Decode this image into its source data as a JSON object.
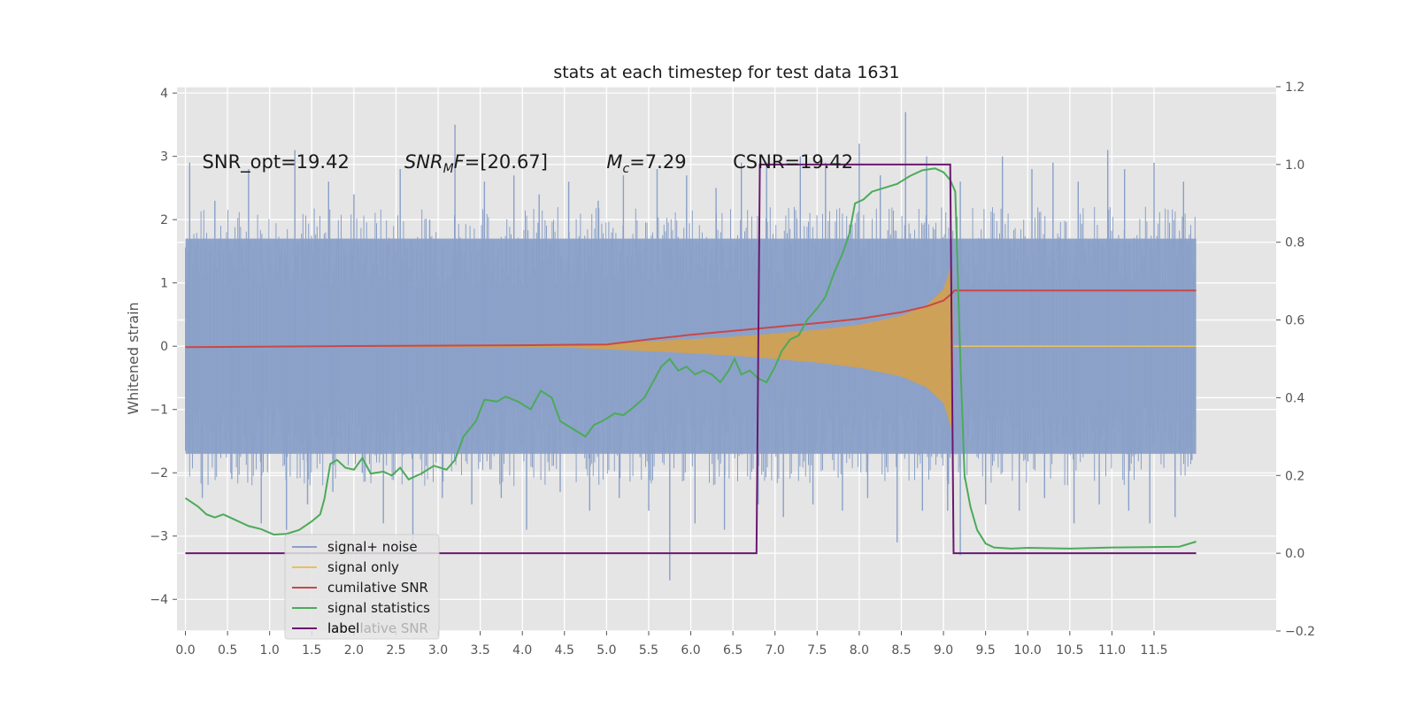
{
  "chart_data": {
    "type": "line",
    "title": "stats at each timestep for test data 1631",
    "ylabel": "Whitened strain",
    "xlabel": "",
    "xlim": [
      -0.1,
      12.95
    ],
    "ylim_left": [
      -4.5,
      4.1
    ],
    "ylim_right": [
      -0.2,
      1.2
    ],
    "grid": true,
    "legend_position": "lower-left",
    "x_ticks": [
      "0.0",
      "0.5",
      "1.0",
      "1.5",
      "2.0",
      "2.5",
      "3.0",
      "3.5",
      "4.0",
      "4.5",
      "5.0",
      "5.5",
      "6.0",
      "6.5",
      "7.0",
      "7.5",
      "8.0",
      "8.5",
      "9.0",
      "9.5",
      "10.0",
      "10.5",
      "11.0",
      "11.5"
    ],
    "y_left_ticks": [
      "4",
      "3",
      "2",
      "1",
      "0",
      "−1",
      "−2",
      "−3",
      "−4"
    ],
    "y_right_ticks": [
      "1.2",
      "1.0",
      "0.8",
      "0.6",
      "0.4",
      "0.2",
      "0.0",
      "−0.2"
    ],
    "annotations": [
      {
        "prefix": "SNR_opt=",
        "value": "19.42",
        "x": 0.2,
        "y": 2.9
      },
      {
        "math": "SNR",
        "sub": "M",
        "tail": "F=",
        "value": "[20.67]",
        "x": 2.6,
        "y": 2.9
      },
      {
        "math": "M",
        "sub": "c",
        "tail": "=",
        "value": "7.29",
        "x": 5.0,
        "y": 2.9
      },
      {
        "prefix": "CSNR=",
        "value": "19.42",
        "x": 6.5,
        "y": 2.9
      }
    ],
    "legend_ghost_text": "cumilative SNR",
    "series": [
      {
        "name": "signal+ noise",
        "color": "#8aa0c8",
        "axis": "left",
        "x_range": [
          0,
          12.0
        ],
        "envelope_upper": [
          [
            0,
            1.7
          ],
          [
            12.0,
            1.7
          ]
        ],
        "envelope_lower": [
          [
            0,
            -1.7
          ],
          [
            12.0,
            -1.7
          ]
        ],
        "outlier_points": [
          [
            0.05,
            2.9
          ],
          [
            0.35,
            2.3
          ],
          [
            0.75,
            2.8
          ],
          [
            1.3,
            3.1
          ],
          [
            1.7,
            2.6
          ],
          [
            2.0,
            2.4
          ],
          [
            2.55,
            2.8
          ],
          [
            2.9,
            2.0
          ],
          [
            3.2,
            3.5
          ],
          [
            3.55,
            2.6
          ],
          [
            3.9,
            2.7
          ],
          [
            4.2,
            2.4
          ],
          [
            4.55,
            2.6
          ],
          [
            4.9,
            2.3
          ],
          [
            5.2,
            2.7
          ],
          [
            5.6,
            2.8
          ],
          [
            5.95,
            2.7
          ],
          [
            6.3,
            2.5
          ],
          [
            6.6,
            2.9
          ],
          [
            6.9,
            2.9
          ],
          [
            7.3,
            3.0
          ],
          [
            7.6,
            2.9
          ],
          [
            8.0,
            3.2
          ],
          [
            8.25,
            2.7
          ],
          [
            8.55,
            3.7
          ],
          [
            8.8,
            3.0
          ],
          [
            9.2,
            2.6
          ],
          [
            9.7,
            3.0
          ],
          [
            10.05,
            2.8
          ],
          [
            10.3,
            2.9
          ],
          [
            10.6,
            2.6
          ],
          [
            10.95,
            3.1
          ],
          [
            11.15,
            2.8
          ],
          [
            11.5,
            2.9
          ],
          [
            11.85,
            2.6
          ],
          [
            0.2,
            -2.4
          ],
          [
            0.55,
            -2.1
          ],
          [
            0.9,
            -2.8
          ],
          [
            1.2,
            -2.9
          ],
          [
            1.45,
            -2.5
          ],
          [
            1.75,
            -2.3
          ],
          [
            2.1,
            -2.0
          ],
          [
            2.35,
            -2.8
          ],
          [
            2.7,
            -3.2
          ],
          [
            3.05,
            -2.4
          ],
          [
            3.4,
            -2.5
          ],
          [
            3.75,
            -2.4
          ],
          [
            4.05,
            -2.9
          ],
          [
            4.45,
            -2.3
          ],
          [
            4.8,
            -2.6
          ],
          [
            5.15,
            -2.4
          ],
          [
            5.5,
            -2.6
          ],
          [
            5.75,
            -3.7
          ],
          [
            6.05,
            -2.8
          ],
          [
            6.4,
            -2.9
          ],
          [
            6.8,
            -2.5
          ],
          [
            7.1,
            -2.7
          ],
          [
            7.45,
            -2.5
          ],
          [
            7.8,
            -2.6
          ],
          [
            8.1,
            -2.4
          ],
          [
            8.45,
            -3.1
          ],
          [
            8.75,
            -2.6
          ],
          [
            9.05,
            -2.6
          ],
          [
            9.2,
            -3.3
          ],
          [
            9.5,
            -2.5
          ],
          [
            9.9,
            -2.6
          ],
          [
            10.2,
            -2.4
          ],
          [
            10.55,
            -2.8
          ],
          [
            10.85,
            -2.5
          ],
          [
            11.2,
            -2.6
          ],
          [
            11.45,
            -2.8
          ],
          [
            11.75,
            -2.7
          ],
          [
            11.95,
            -1.8
          ]
        ]
      },
      {
        "name": "signal only",
        "color": "#e8c060",
        "fill_color": "#d4a14a",
        "axis": "left",
        "envelope": [
          [
            0,
            0.0
          ],
          [
            4.5,
            0.02
          ],
          [
            5.0,
            0.05
          ],
          [
            5.5,
            0.08
          ],
          [
            6.0,
            0.11
          ],
          [
            6.5,
            0.15
          ],
          [
            7.0,
            0.2
          ],
          [
            7.5,
            0.26
          ],
          [
            8.0,
            0.34
          ],
          [
            8.5,
            0.48
          ],
          [
            8.8,
            0.65
          ],
          [
            9.0,
            0.9
          ],
          [
            9.05,
            1.1
          ],
          [
            9.1,
            1.35
          ],
          [
            9.12,
            0.0
          ]
        ],
        "tail_y": 0.0,
        "tail_x": [
          9.12,
          12.0
        ]
      },
      {
        "name": "cumilative SNR",
        "color": "#c84848",
        "axis": "right",
        "points": [
          [
            0,
            0.53
          ],
          [
            2.0,
            0.533
          ],
          [
            4.0,
            0.535
          ],
          [
            5.0,
            0.537
          ],
          [
            5.5,
            0.55
          ],
          [
            6.0,
            0.562
          ],
          [
            6.5,
            0.572
          ],
          [
            7.0,
            0.582
          ],
          [
            7.5,
            0.592
          ],
          [
            8.0,
            0.603
          ],
          [
            8.5,
            0.62
          ],
          [
            8.8,
            0.635
          ],
          [
            9.0,
            0.65
          ],
          [
            9.1,
            0.668
          ],
          [
            9.13,
            0.676
          ],
          [
            12.0,
            0.676
          ]
        ]
      },
      {
        "name": "signal statistics",
        "color": "#4caa5a",
        "axis": "right",
        "points": [
          [
            0,
            0.142
          ],
          [
            0.15,
            0.12
          ],
          [
            0.25,
            0.1
          ],
          [
            0.35,
            0.092
          ],
          [
            0.45,
            0.1
          ],
          [
            0.6,
            0.085
          ],
          [
            0.75,
            0.07
          ],
          [
            0.9,
            0.062
          ],
          [
            1.05,
            0.048
          ],
          [
            1.2,
            0.05
          ],
          [
            1.35,
            0.06
          ],
          [
            1.5,
            0.082
          ],
          [
            1.6,
            0.1
          ],
          [
            1.65,
            0.14
          ],
          [
            1.72,
            0.23
          ],
          [
            1.8,
            0.24
          ],
          [
            1.9,
            0.22
          ],
          [
            2.0,
            0.215
          ],
          [
            2.1,
            0.245
          ],
          [
            2.2,
            0.205
          ],
          [
            2.35,
            0.21
          ],
          [
            2.45,
            0.2
          ],
          [
            2.55,
            0.22
          ],
          [
            2.65,
            0.19
          ],
          [
            2.8,
            0.205
          ],
          [
            2.95,
            0.225
          ],
          [
            3.1,
            0.215
          ],
          [
            3.2,
            0.24
          ],
          [
            3.3,
            0.3
          ],
          [
            3.45,
            0.34
          ],
          [
            3.55,
            0.395
          ],
          [
            3.7,
            0.39
          ],
          [
            3.8,
            0.403
          ],
          [
            3.95,
            0.39
          ],
          [
            4.1,
            0.37
          ],
          [
            4.22,
            0.418
          ],
          [
            4.35,
            0.4
          ],
          [
            4.45,
            0.34
          ],
          [
            4.6,
            0.32
          ],
          [
            4.75,
            0.3
          ],
          [
            4.85,
            0.33
          ],
          [
            4.95,
            0.34
          ],
          [
            5.1,
            0.36
          ],
          [
            5.2,
            0.355
          ],
          [
            5.3,
            0.372
          ],
          [
            5.45,
            0.4
          ],
          [
            5.55,
            0.44
          ],
          [
            5.65,
            0.48
          ],
          [
            5.75,
            0.5
          ],
          [
            5.85,
            0.47
          ],
          [
            5.95,
            0.48
          ],
          [
            6.05,
            0.46
          ],
          [
            6.15,
            0.47
          ],
          [
            6.25,
            0.46
          ],
          [
            6.35,
            0.44
          ],
          [
            6.45,
            0.47
          ],
          [
            6.52,
            0.5
          ],
          [
            6.6,
            0.46
          ],
          [
            6.7,
            0.47
          ],
          [
            6.8,
            0.45
          ],
          [
            6.9,
            0.44
          ],
          [
            7.0,
            0.48
          ],
          [
            7.08,
            0.52
          ],
          [
            7.18,
            0.55
          ],
          [
            7.28,
            0.56
          ],
          [
            7.38,
            0.6
          ],
          [
            7.5,
            0.63
          ],
          [
            7.6,
            0.66
          ],
          [
            7.7,
            0.72
          ],
          [
            7.8,
            0.77
          ],
          [
            7.88,
            0.82
          ],
          [
            7.95,
            0.9
          ],
          [
            8.05,
            0.91
          ],
          [
            8.15,
            0.93
          ],
          [
            8.3,
            0.94
          ],
          [
            8.45,
            0.95
          ],
          [
            8.6,
            0.97
          ],
          [
            8.75,
            0.985
          ],
          [
            8.9,
            0.99
          ],
          [
            9.0,
            0.98
          ],
          [
            9.08,
            0.96
          ],
          [
            9.14,
            0.93
          ],
          [
            9.2,
            0.5
          ],
          [
            9.25,
            0.2
          ],
          [
            9.32,
            0.12
          ],
          [
            9.4,
            0.06
          ],
          [
            9.5,
            0.025
          ],
          [
            9.6,
            0.015
          ],
          [
            9.8,
            0.012
          ],
          [
            10.0,
            0.014
          ],
          [
            10.5,
            0.012
          ],
          [
            11.0,
            0.015
          ],
          [
            11.5,
            0.016
          ],
          [
            11.8,
            0.017
          ],
          [
            12.0,
            0.03
          ]
        ]
      },
      {
        "name": "label",
        "color": "#6a1870",
        "axis": "right",
        "points": [
          [
            0,
            0.0
          ],
          [
            6.78,
            0.0
          ],
          [
            6.82,
            1.0
          ],
          [
            9.08,
            1.0
          ],
          [
            9.12,
            0.0
          ],
          [
            12.0,
            0.0
          ]
        ]
      }
    ]
  }
}
